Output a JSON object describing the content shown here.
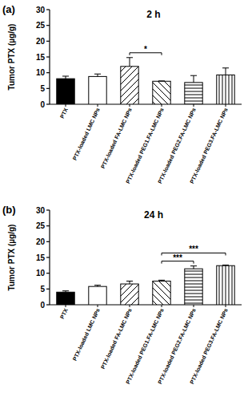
{
  "chart_data": [
    {
      "type": "bar",
      "panel": "(a)",
      "title": "2 h",
      "y_label": "Tumor PTX (µg/g)",
      "categories": [
        "PTX",
        "PTX-loaded LMC NPs",
        "PTX-loaded FA-LMC NPs",
        "PTX-loaded PEG1.FA-LMC NPs",
        "PTX-loaded PEG2.FA-LMC NPs",
        "PTX-loaded PEG3.FA-LMC NPs"
      ],
      "values": [
        8.1,
        8.8,
        12.0,
        7.3,
        6.9,
        9.3
      ],
      "errors": [
        0.8,
        0.8,
        2.8,
        0.1,
        2.2,
        2.2
      ],
      "colors": [
        "#000000",
        "#ffffff",
        "#ffffff",
        "#ffffff",
        "#ffffff",
        "#ffffff"
      ],
      "ylim": [
        0,
        30
      ],
      "yticks": [
        0,
        5,
        10,
        15,
        20,
        25,
        30
      ],
      "grid": false,
      "annotations": [
        {
          "text": "*",
          "from": 2,
          "to": 3
        }
      ]
    },
    {
      "type": "bar",
      "panel": "(b)",
      "title": "24 h",
      "y_label": "Tumor PTX (µg/g)",
      "categories": [
        "PTX",
        "PTX-loaded LMC NPs",
        "PTX-loaded FA-LMC NPs",
        "PTX-loaded PEG1.FA-LMC NPs",
        "PTX-loaded PEG2.FA-LMC NPs",
        "PTX-loaded PEG3.FA-LMC NPs"
      ],
      "values": [
        4.0,
        5.8,
        6.6,
        7.5,
        11.4,
        12.4
      ],
      "errors": [
        0.4,
        0.4,
        0.9,
        0.3,
        0.9,
        0.2
      ],
      "colors": [
        "#000000",
        "#ffffff",
        "#ffffff",
        "#ffffff",
        "#ffffff",
        "#ffffff"
      ],
      "ylim": [
        0,
        30
      ],
      "yticks": [
        0,
        5,
        10,
        15,
        20,
        25,
        30
      ],
      "grid": false,
      "annotations": [
        {
          "text": "***",
          "from": 3,
          "to": 4
        },
        {
          "text": "***",
          "from": 3,
          "to": 5
        }
      ]
    }
  ]
}
